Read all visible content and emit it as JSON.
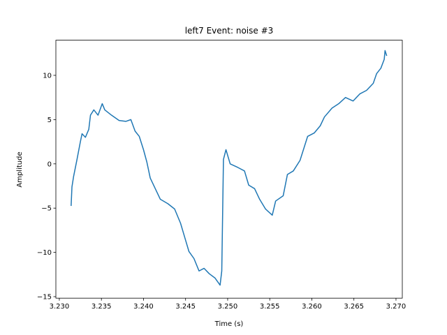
{
  "chart_data": {
    "type": "line",
    "title": "left7 Event: noise #3",
    "xlabel": "Time (s)",
    "ylabel": "Amplitude",
    "series": [
      {
        "color": "#1f77b4",
        "x": [
          3.2314,
          3.2315,
          3.2317,
          3.2321,
          3.2325,
          3.2327,
          3.2331,
          3.2335,
          3.2337,
          3.2341,
          3.2346,
          3.2351,
          3.2354,
          3.2362,
          3.2371,
          3.2379,
          3.2385,
          3.239,
          3.2395,
          3.24,
          3.2404,
          3.2408,
          3.2414,
          3.242,
          3.2429,
          3.2437,
          3.2444,
          3.2449,
          3.2454,
          3.246,
          3.2466,
          3.2472,
          3.2478,
          3.2485,
          3.2491,
          3.2493,
          3.2495,
          3.2498,
          3.2503,
          3.2512,
          3.252,
          3.2525,
          3.2532,
          3.2538,
          3.2545,
          3.2553,
          3.2557,
          3.2566,
          3.2571,
          3.2578,
          3.2586,
          3.2595,
          3.2603,
          3.261,
          3.2615,
          3.2624,
          3.2632,
          3.264,
          3.2649,
          3.2657,
          3.2665,
          3.2673,
          3.2677,
          3.2682,
          3.2686,
          3.2687,
          3.2689
        ],
        "values": [
          -4.75,
          -2.6,
          -1.4,
          0.5,
          2.5,
          3.4,
          3.0,
          3.9,
          5.5,
          6.1,
          5.5,
          6.8,
          6.1,
          5.5,
          4.9,
          4.8,
          5.0,
          3.7,
          3.1,
          1.6,
          0.2,
          -1.6,
          -2.8,
          -4.0,
          -4.5,
          -5.1,
          -6.7,
          -8.3,
          -9.9,
          -10.7,
          -12.1,
          -11.8,
          -12.4,
          -12.9,
          -13.7,
          -12.1,
          0.5,
          1.6,
          0.0,
          -0.4,
          -0.8,
          -2.4,
          -2.8,
          -4.0,
          -5.1,
          -5.8,
          -4.2,
          -3.6,
          -1.2,
          -0.8,
          0.4,
          3.1,
          3.5,
          4.3,
          5.3,
          6.3,
          6.8,
          7.5,
          7.1,
          7.9,
          8.3,
          9.1,
          10.2,
          10.8,
          11.8,
          12.8,
          12.2
        ]
      }
    ],
    "xlim": [
      3.22959,
      3.27075
    ],
    "ylim": [
      -15.17,
      13.97
    ],
    "xticks": [
      {
        "value": 3.23,
        "label": "3.230"
      },
      {
        "value": 3.235,
        "label": "3.235"
      },
      {
        "value": 3.24,
        "label": "3.240"
      },
      {
        "value": 3.245,
        "label": "3.245"
      },
      {
        "value": 3.25,
        "label": "3.250"
      },
      {
        "value": 3.255,
        "label": "3.255"
      },
      {
        "value": 3.26,
        "label": "3.260"
      },
      {
        "value": 3.265,
        "label": "3.265"
      },
      {
        "value": 3.27,
        "label": "3.270"
      }
    ],
    "yticks": [
      {
        "value": -15,
        "label": "−15"
      },
      {
        "value": -10,
        "label": "−10"
      },
      {
        "value": -5,
        "label": "−5"
      },
      0,
      5,
      10
    ]
  }
}
